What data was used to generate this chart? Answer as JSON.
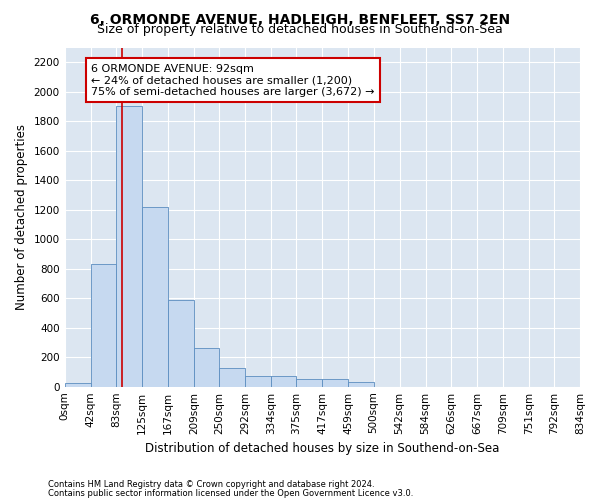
{
  "title_line1": "6, ORMONDE AVENUE, HADLEIGH, BENFLEET, SS7 2EN",
  "title_line2": "Size of property relative to detached houses in Southend-on-Sea",
  "xlabel": "Distribution of detached houses by size in Southend-on-Sea",
  "ylabel": "Number of detached properties",
  "footnote1": "Contains HM Land Registry data © Crown copyright and database right 2024.",
  "footnote2": "Contains public sector information licensed under the Open Government Licence v3.0.",
  "bin_edges": [
    0,
    42,
    83,
    125,
    167,
    209,
    250,
    292,
    334,
    375,
    417,
    459,
    500,
    542,
    584,
    626,
    667,
    709,
    751,
    792,
    834
  ],
  "bar_heights": [
    25,
    830,
    1900,
    1220,
    590,
    260,
    130,
    75,
    75,
    55,
    55,
    30,
    0,
    0,
    0,
    0,
    0,
    0,
    0,
    0
  ],
  "bar_color": "#c6d9f0",
  "bar_edge_color": "#5b8dc0",
  "property_size": 92,
  "annotation_line1": "6 ORMONDE AVENUE: 92sqm",
  "annotation_line2": "← 24% of detached houses are smaller (1,200)",
  "annotation_line3": "75% of semi-detached houses are larger (3,672) →",
  "annotation_box_color": "#ffffff",
  "annotation_box_edge_color": "#cc0000",
  "vline_color": "#cc0000",
  "ylim": [
    0,
    2300
  ],
  "yticks": [
    0,
    200,
    400,
    600,
    800,
    1000,
    1200,
    1400,
    1600,
    1800,
    2000,
    2200
  ],
  "plot_bg_color": "#dce6f1",
  "title_fontsize": 10,
  "subtitle_fontsize": 9,
  "axis_label_fontsize": 8.5,
  "tick_fontsize": 7.5,
  "annot_fontsize": 8,
  "footnote_fontsize": 6
}
